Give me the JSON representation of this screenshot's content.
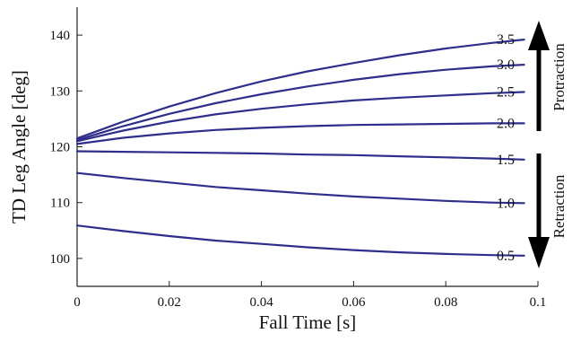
{
  "chart_data": {
    "type": "line",
    "title": "",
    "xlabel": "Fall Time [s]",
    "ylabel": "TD Leg Angle [deg]",
    "xlim": [
      0,
      0.1
    ],
    "ylim": [
      95,
      145
    ],
    "x_ticks": [
      0,
      0.02,
      0.04,
      0.06,
      0.08,
      0.1
    ],
    "x_tick_labels": [
      "0",
      "0.02",
      "0.04",
      "0.06",
      "0.08",
      "0.1"
    ],
    "y_ticks": [
      100,
      110,
      120,
      130,
      140
    ],
    "y_tick_labels": [
      "100",
      "110",
      "120",
      "130",
      "140"
    ],
    "grid": false,
    "line_color": "#2e2e8c",
    "x": [
      0,
      0.01,
      0.02,
      0.03,
      0.04,
      0.05,
      0.06,
      0.07,
      0.08,
      0.09,
      0.097
    ],
    "series": [
      {
        "name": "3.5",
        "values": [
          121.5,
          124.5,
          127.2,
          129.6,
          131.7,
          133.5,
          135.0,
          136.4,
          137.6,
          138.6,
          139.2
        ]
      },
      {
        "name": "3.0",
        "values": [
          121.2,
          123.7,
          125.9,
          127.8,
          129.4,
          130.8,
          132.0,
          133.0,
          133.8,
          134.4,
          134.7
        ]
      },
      {
        "name": "2.5",
        "values": [
          121.0,
          122.9,
          124.5,
          125.8,
          126.8,
          127.6,
          128.3,
          128.8,
          129.2,
          129.6,
          129.8
        ]
      },
      {
        "name": "2.0",
        "values": [
          120.5,
          121.6,
          122.4,
          123.0,
          123.4,
          123.7,
          123.9,
          124.0,
          124.1,
          124.2,
          124.2
        ]
      },
      {
        "name": "1.5",
        "values": [
          119.2,
          119.1,
          119.0,
          118.9,
          118.8,
          118.6,
          118.5,
          118.3,
          118.1,
          117.9,
          117.7
        ]
      },
      {
        "name": "1.0",
        "values": [
          115.3,
          114.4,
          113.6,
          112.8,
          112.2,
          111.6,
          111.1,
          110.7,
          110.3,
          110.0,
          109.9
        ]
      },
      {
        "name": "0.5",
        "values": [
          105.9,
          104.9,
          104.0,
          103.2,
          102.6,
          102.0,
          101.5,
          101.1,
          100.8,
          100.6,
          100.5
        ]
      }
    ],
    "annotations": [
      {
        "text": "Protraction",
        "arrow": "up"
      },
      {
        "text": "Retraction",
        "arrow": "down"
      }
    ]
  }
}
